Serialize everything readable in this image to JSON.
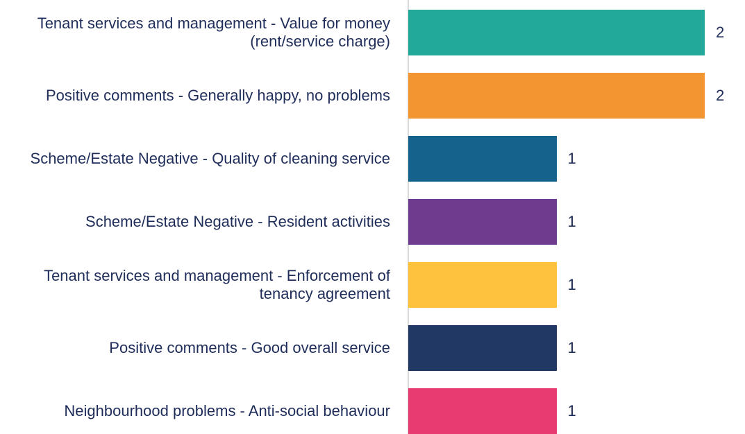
{
  "chart_data": {
    "type": "bar",
    "orientation": "horizontal",
    "categories": [
      "Tenant services and management - Value for money (rent/service charge)",
      "Positive comments - Generally happy, no problems",
      "Scheme/Estate Negative - Quality of cleaning service",
      "Scheme/Estate Negative - Resident activities",
      "Tenant services and management - Enforcement of tenancy agreement",
      "Positive comments - Good overall service",
      "Neighbourhood problems - Anti-social behaviour"
    ],
    "values": [
      2,
      2,
      1,
      1,
      1,
      1,
      1
    ],
    "colors": [
      "#22a99a",
      "#f39530",
      "#15638c",
      "#6f3b8e",
      "#fec23c",
      "#213864",
      "#e83b71"
    ]
  }
}
